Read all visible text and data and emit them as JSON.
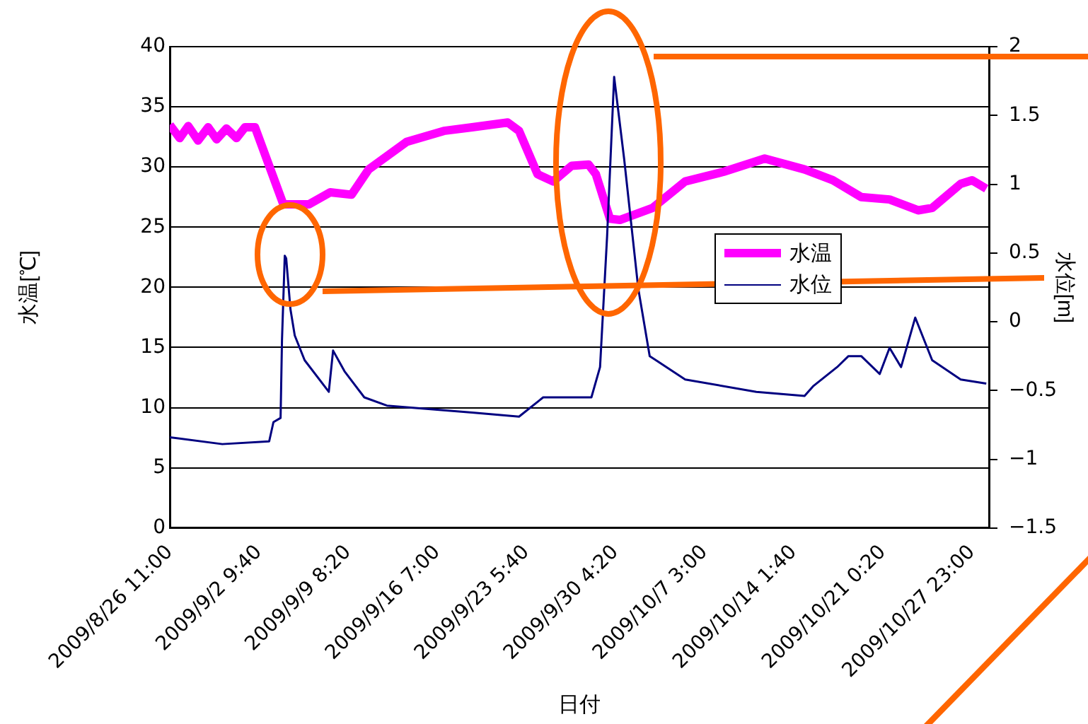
{
  "chart_data": {
    "type": "line",
    "xlabel": "日付",
    "ylabel": "水温[℃]",
    "y2label": "水位[m]",
    "grid": "y",
    "legend": "right",
    "marker": "none",
    "line_style": "solid",
    "xlim": [
      "2009-08-26T11:00",
      "2009-10-29T06:40"
    ],
    "xticks": [
      {
        "value": "2009-08-26T11:00",
        "label": "2009/8/26 11:00"
      },
      {
        "value": "2009-09-02T09:40",
        "label": "2009/9/2 9:40"
      },
      {
        "value": "2009-09-09T08:20",
        "label": "2009/9/9 8:20"
      },
      {
        "value": "2009-09-16T07:00",
        "label": "2009/9/16 7:00"
      },
      {
        "value": "2009-09-23T05:40",
        "label": "2009/9/23 5:40"
      },
      {
        "value": "2009-09-30T04:20",
        "label": "2009/9/30 4:20"
      },
      {
        "value": "2009-10-07T03:00",
        "label": "2009/10/7 3:00"
      },
      {
        "value": "2009-10-14T01:40",
        "label": "2009/10/14 1:40"
      },
      {
        "value": "2009-10-21T00:20",
        "label": "2009/10/21 0:20"
      },
      {
        "value": "2009-10-27T23:00",
        "label": "2009/10/27 23:00"
      }
    ],
    "ylim": [
      0,
      40
    ],
    "yticks": [
      0,
      5,
      10,
      15,
      20,
      25,
      30,
      35,
      40
    ],
    "y2lim": [
      -1.5,
      2
    ],
    "y2ticks": [
      {
        "value": -1.5,
        "label": "−1.5"
      },
      {
        "value": -1,
        "label": "−1"
      },
      {
        "value": -0.5,
        "label": "−0.5"
      },
      0,
      0.5,
      1,
      1.5,
      2
    ],
    "series": [
      {
        "name": "水温",
        "color": "#ff00ff",
        "x": [
          "2009-08-26T11:00",
          "2009-08-27T05:40",
          "2009-08-27T21:30",
          "2009-08-28T16:00",
          "2009-08-29T10:40",
          "2009-08-30T02:40",
          "2009-08-30T21:00",
          "2009-08-31T15:50",
          "2009-09-01T07:40",
          "2009-09-02T02:20",
          "2009-09-04T07:20",
          "2009-09-06T07:10",
          "2009-09-07T23:00",
          "2009-09-09T14:50",
          "2009-09-10T22:50",
          "2009-09-13T22:20",
          "2009-09-16T19:20",
          "2009-09-19T00:20",
          "2009-09-21T18:50",
          "2009-09-22T16:00",
          "2009-09-24T02:40",
          "2009-09-25T07:50",
          "2009-09-26T18:20",
          "2009-09-28T02:10",
          "2009-09-28T15:40",
          "2009-09-29T18:00",
          "2009-09-30T12:40",
          "2009-10-03T01:40",
          "2009-10-05T14:40",
          "2009-10-08T14:20",
          "2009-10-11T19:20",
          "2009-10-14T21:50",
          "2009-10-17T02:50",
          "2009-10-19T07:50",
          "2009-10-21T12:50",
          "2009-10-23T18:10",
          "2009-10-24T20:30",
          "2009-10-27T01:50",
          "2009-10-27T23:00",
          "2009-10-29T01:40"
        ],
        "values": [
          33.5,
          32.4,
          33.4,
          32.2,
          33.3,
          32.3,
          33.2,
          32.4,
          33.3,
          33.3,
          26.9,
          26.9,
          27.9,
          27.7,
          29.8,
          32.1,
          33,
          33.3,
          33.7,
          33,
          29.4,
          28.8,
          30.1,
          30.2,
          29.4,
          25.7,
          25.6,
          26.6,
          28.8,
          29.6,
          30.7,
          29.8,
          28.9,
          27.5,
          27.3,
          26.4,
          26.6,
          28.6,
          28.9,
          28.2
        ]
      },
      {
        "name": "水位",
        "color": "#000080",
        "axis": "y2",
        "x": [
          "2009-08-26T11:00",
          "2009-08-30T13:10",
          "2009-09-03T04:50",
          "2009-09-03T12:50",
          "2009-09-04T02:10",
          "2009-09-04T04:50",
          "2009-09-04T10:00",
          "2009-09-04T12:40",
          "2009-09-04T20:40",
          "2009-09-05T04:40",
          "2009-09-05T23:10",
          "2009-09-07T20:20",
          "2009-09-08T04:20",
          "2009-09-09T01:40",
          "2009-09-10T14:40",
          "2009-09-12T09:00",
          "2009-09-19T00:20",
          "2009-09-22T16:00",
          "2009-09-24T13:10",
          "2009-09-27T20:50",
          "2009-09-28T07:20",
          "2009-09-28T23:30",
          "2009-09-29T12:40",
          "2009-09-30T01:50",
          "2009-09-30T20:40",
          "2009-10-01T23:00",
          "2009-10-02T20:20",
          "2009-10-05T14:40",
          "2009-10-11T03:40",
          "2009-10-14T21:50",
          "2009-10-15T13:40",
          "2009-10-17T10:50",
          "2009-10-18T08:00",
          "2009-10-19T07:50",
          "2009-10-20T18:20",
          "2009-10-21T12:50",
          "2009-10-22T10:20",
          "2009-10-23T12:50",
          "2009-10-24T20:30",
          "2009-10-27T01:50",
          "2009-10-29T01:40"
        ],
        "values": [
          -0.84,
          -0.89,
          -0.87,
          -0.73,
          -0.7,
          -0.13,
          0.48,
          0.46,
          0.09,
          -0.1,
          -0.28,
          -0.51,
          -0.21,
          -0.36,
          -0.55,
          -0.61,
          -0.66,
          -0.69,
          -0.55,
          -0.55,
          -0.55,
          -0.33,
          0.62,
          1.78,
          1.18,
          0.24,
          -0.25,
          -0.42,
          -0.51,
          -0.54,
          -0.47,
          -0.33,
          -0.25,
          -0.25,
          -0.38,
          -0.19,
          -0.33,
          0.03,
          -0.28,
          -0.42,
          -0.45
        ]
      }
    ]
  }
}
